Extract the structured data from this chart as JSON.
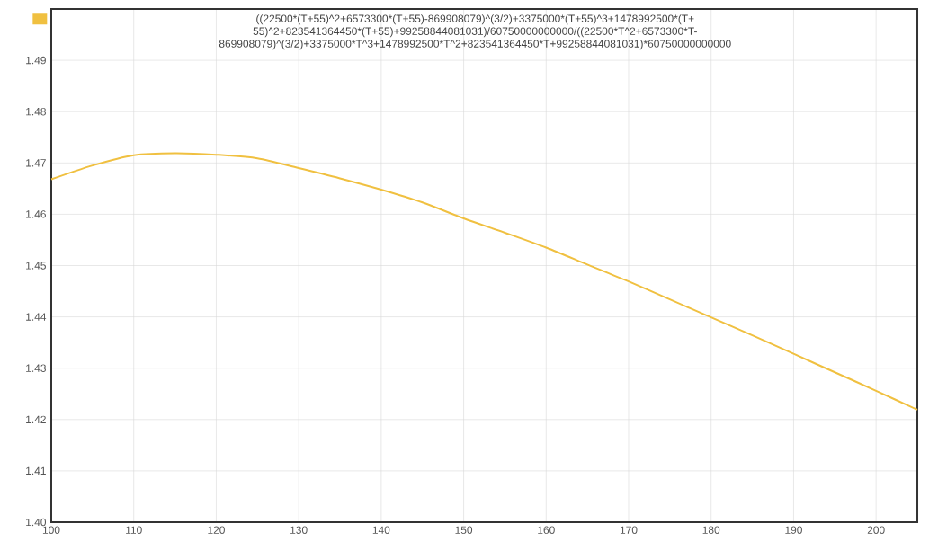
{
  "chart_data": {
    "type": "line",
    "x": [
      100,
      105,
      110,
      115,
      120,
      125,
      130,
      135,
      140,
      145,
      150,
      155,
      160,
      165,
      170,
      175,
      180,
      185,
      190,
      195,
      200,
      205
    ],
    "series": [
      {
        "name": "((22500*(T+55)^2+6573300*(T+55)-869908079)^(3/2)+3375000*(T+55)^3+1478992500*(T+55)^2+823541364450*(T+55)+99258844081031)/60750000000000/((22500*T^2+6573300*T-869908079)^(3/2)+3375000*T^3+1478992500*T^2+823541364450*T+99258844081031)*60750000000000",
        "color": "#f0c040",
        "values": [
          1.4668,
          1.4695,
          1.4715,
          1.4719,
          1.4716,
          1.4709,
          1.469,
          1.467,
          1.4648,
          1.4623,
          1.4592,
          1.4564,
          1.4535,
          1.4502,
          1.4469,
          1.4434,
          1.4399,
          1.4364,
          1.4328,
          1.4292,
          1.4256,
          1.4219
        ]
      }
    ],
    "xlim": [
      100,
      205
    ],
    "ylim": [
      1.4,
      1.5
    ],
    "xticks": [
      100,
      110,
      120,
      130,
      140,
      150,
      160,
      170,
      180,
      190,
      200
    ],
    "yticks": [
      {
        "value": 1.4,
        "label": "1.40"
      },
      {
        "value": 1.41,
        "label": "1.41"
      },
      {
        "value": 1.42,
        "label": "1.42"
      },
      {
        "value": 1.43,
        "label": "1.43"
      },
      {
        "value": 1.44,
        "label": "1.44"
      },
      {
        "value": 1.45,
        "label": "1.45"
      },
      {
        "value": 1.46,
        "label": "1.46"
      },
      {
        "value": 1.47,
        "label": "1.47"
      },
      {
        "value": 1.48,
        "label": "1.48"
      },
      {
        "value": 1.49,
        "label": "1.49"
      }
    ],
    "grid": true,
    "legend": "top"
  }
}
